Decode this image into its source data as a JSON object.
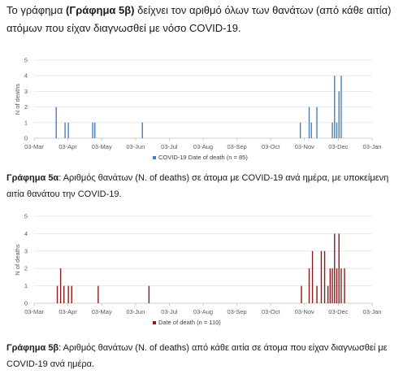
{
  "intro": {
    "text_before": "Το γράφημα ",
    "text_bold": "(Γράφημα 5β)",
    "text_after": " δείχνει τον αριθμό όλων των θανάτων (από κάθε αιτία) ατόμων που είχαν διαγνωσθεί με νόσο COVID-19."
  },
  "caption_a": {
    "bold": "Γράφημα 5α",
    "rest": ": Αριθμός θανάτων (N. of deaths) σε άτομα με COVID-19 ανά ημέρα, με υποκείμενη αιτία θανάτου την COVID-19."
  },
  "caption_b": {
    "bold": "Γράφημα 5β",
    "rest": ": Αριθμός θανάτων (N. of deaths) από κάθε αιτία σε άτομα που είχαν διαγνωσθεί με COVID-19 ανά ημέρα."
  },
  "chart_data": [
    {
      "type": "bar",
      "ylabel": "N of deaths",
      "ylim": [
        0,
        5
      ],
      "yticks": [
        "0",
        "1",
        "2",
        "3",
        "4",
        "5"
      ],
      "xticks": [
        "03-Mar",
        "03-Apr",
        "03-May",
        "03-Jun",
        "03-Jul",
        "03-Aug",
        "03-Sep",
        "03-Oct",
        "03-Nov",
        "03-Dec",
        "03-Jan"
      ],
      "grid": true,
      "legend_position": "bottom",
      "series": [
        {
          "name": "COVID-19 Date of death (n = 85)",
          "color": "#4a7ebb",
          "points": [
            {
              "x": "2020-03-23",
              "y": 2
            },
            {
              "x": "2020-03-31",
              "y": 1
            },
            {
              "x": "2020-04-03",
              "y": 1
            },
            {
              "x": "2020-04-25",
              "y": 1
            },
            {
              "x": "2020-04-27",
              "y": 1
            },
            {
              "x": "2020-06-09",
              "y": 1
            },
            {
              "x": "2020-10-30",
              "y": 1
            },
            {
              "x": "2020-11-07",
              "y": 2
            },
            {
              "x": "2020-11-09",
              "y": 1
            },
            {
              "x": "2020-11-14",
              "y": 2
            },
            {
              "x": "2020-11-28",
              "y": 1
            },
            {
              "x": "2020-11-30",
              "y": 4
            },
            {
              "x": "2020-12-02",
              "y": 1
            },
            {
              "x": "2020-12-04",
              "y": 3
            },
            {
              "x": "2020-12-06",
              "y": 4
            }
          ]
        }
      ]
    },
    {
      "type": "bar",
      "ylabel": "N of deaths",
      "ylim": [
        0,
        5
      ],
      "yticks": [
        "0",
        "1",
        "2",
        "3",
        "4",
        "5"
      ],
      "xticks": [
        "03-Mar",
        "03-Apr",
        "03-May",
        "03-Jun",
        "03-Jul",
        "03-Aug",
        "03-Sep",
        "03-Oct",
        "03-Nov",
        "03-Dec",
        "03-Jan"
      ],
      "grid": true,
      "legend_position": "bottom",
      "series": [
        {
          "name": "Date of death (n = 110)",
          "color": "#8b1a1a",
          "points": [
            {
              "x": "2020-03-24",
              "y": 1
            },
            {
              "x": "2020-03-27",
              "y": 2
            },
            {
              "x": "2020-03-30",
              "y": 1
            },
            {
              "x": "2020-04-03",
              "y": 1
            },
            {
              "x": "2020-04-06",
              "y": 1
            },
            {
              "x": "2020-04-30",
              "y": 1
            },
            {
              "x": "2020-06-15",
              "y": 1
            },
            {
              "x": "2020-10-31",
              "y": 1
            },
            {
              "x": "2020-11-07",
              "y": 2
            },
            {
              "x": "2020-11-10",
              "y": 3
            },
            {
              "x": "2020-11-14",
              "y": 1
            },
            {
              "x": "2020-11-18",
              "y": 3
            },
            {
              "x": "2020-11-21",
              "y": 3
            },
            {
              "x": "2020-11-24",
              "y": 1
            },
            {
              "x": "2020-11-26",
              "y": 2
            },
            {
              "x": "2020-11-28",
              "y": 2
            },
            {
              "x": "2020-11-30",
              "y": 4
            },
            {
              "x": "2020-12-02",
              "y": 2
            },
            {
              "x": "2020-12-04",
              "y": 4
            },
            {
              "x": "2020-12-06",
              "y": 2
            },
            {
              "x": "2020-12-09",
              "y": 2
            }
          ]
        }
      ]
    }
  ]
}
